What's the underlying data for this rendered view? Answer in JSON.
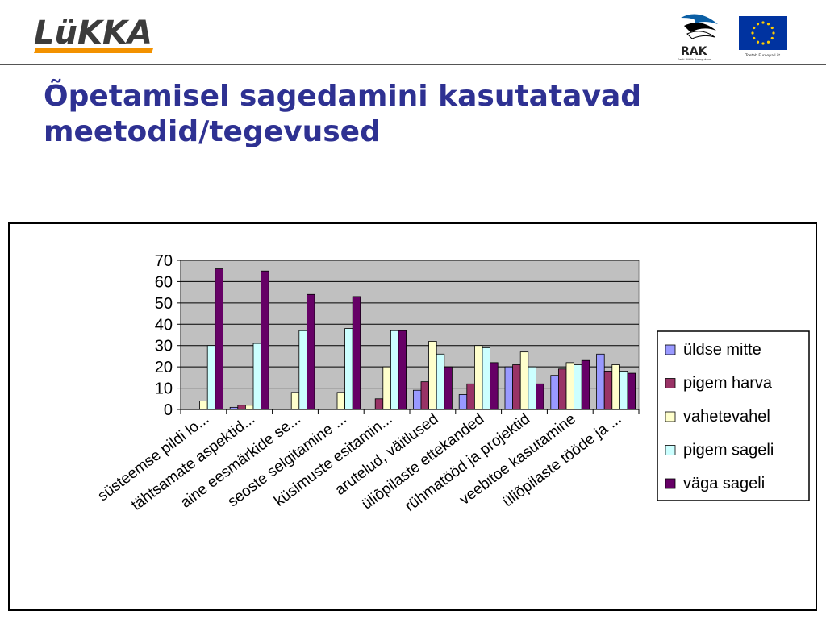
{
  "header": {
    "brand_logo": "LüKKA",
    "rak_logo": "RAK",
    "rak_subtitle": "Eesti Riiklik Arengukava",
    "eu_caption": "Toetab Euroopa Liit"
  },
  "slide": {
    "title_line1": "Õpetamisel sagedamini kasutatavad",
    "title_line2": "meetodid/tegevused"
  },
  "colors": {
    "title": "#2e3192",
    "plot_background": "#c0c0c0",
    "logo_orange": "#f39200",
    "logo_text": "#3c3c3c",
    "eu_blue": "#0033a0",
    "eu_star": "#ffcc00"
  },
  "chart_data": {
    "type": "bar",
    "title": "",
    "xlabel": "",
    "ylabel": "",
    "ylim": [
      0,
      70
    ],
    "yticks": [
      0,
      10,
      20,
      30,
      40,
      50,
      60,
      70
    ],
    "grid": true,
    "legend_position": "right",
    "categories": [
      "süsteemse pildi lo...",
      "tähtsamate aspektid...",
      "aine eesmärkide se...",
      "seoste selgitamine ...",
      "küsimuste esitamin...",
      "arutelud, väitlused",
      "üliõpilaste ettekanded",
      "rühmatööd ja projektid",
      "veebitoe kasutamine",
      "üliõpilaste tööde ja ..."
    ],
    "series": [
      {
        "name": "üldse mitte",
        "color": "#9999ff",
        "values": [
          0,
          1,
          0,
          0,
          0,
          9,
          7,
          20,
          16,
          26
        ]
      },
      {
        "name": "pigem harva",
        "color": "#993366",
        "values": [
          0,
          2,
          0,
          0,
          5,
          13,
          12,
          21,
          19,
          18
        ]
      },
      {
        "name": "vahetevahel",
        "color": "#ffffcc",
        "values": [
          4,
          2,
          8,
          8,
          20,
          32,
          30,
          27,
          22,
          21
        ]
      },
      {
        "name": "pigem sageli",
        "color": "#ccffff",
        "values": [
          30,
          31,
          37,
          38,
          37,
          26,
          29,
          20,
          21,
          18
        ]
      },
      {
        "name": "väga sageli",
        "color": "#660066",
        "values": [
          66,
          65,
          54,
          53,
          37,
          20,
          22,
          12,
          23,
          17
        ]
      }
    ]
  }
}
